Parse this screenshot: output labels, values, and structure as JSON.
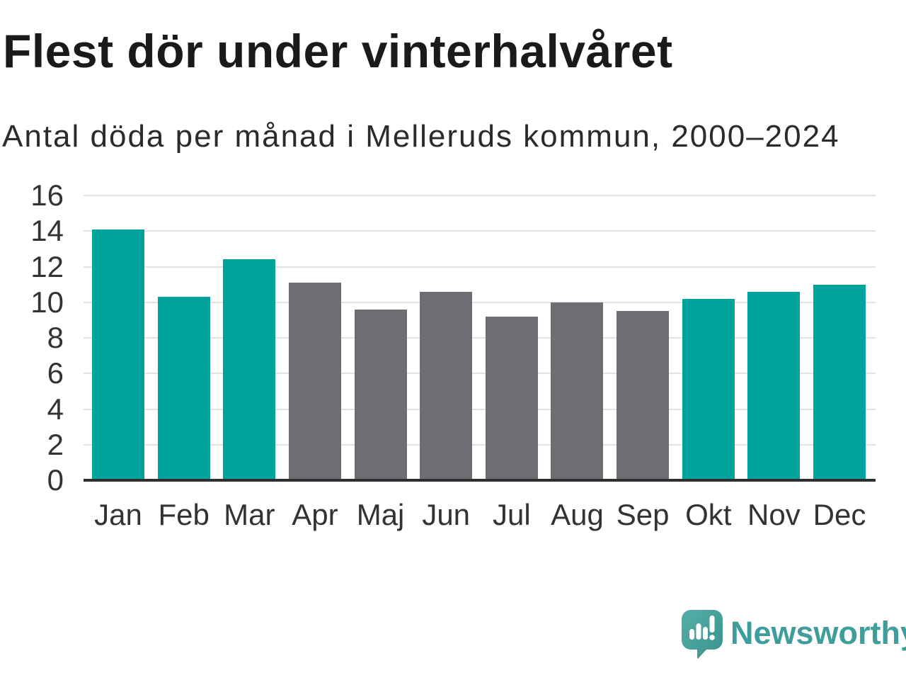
{
  "header": {
    "title": "Flest dör under vinterhalvåret",
    "subtitle": "Antal döda per månad i Melleruds kommun, 2000–2024"
  },
  "chart_data": {
    "type": "bar",
    "title": "Flest dör under vinterhalvåret",
    "subtitle": "Antal döda per månad i Melleruds kommun, 2000–2024",
    "categories": [
      "Jan",
      "Feb",
      "Mar",
      "Apr",
      "Maj",
      "Jun",
      "Jul",
      "Aug",
      "Sep",
      "Okt",
      "Nov",
      "Dec"
    ],
    "values": [
      14.1,
      10.3,
      12.4,
      11.1,
      9.6,
      10.6,
      9.2,
      10.0,
      9.5,
      10.2,
      10.6,
      11.0
    ],
    "bar_colors": [
      "#00a39b",
      "#00a39b",
      "#00a39b",
      "#6e6d73",
      "#6e6d73",
      "#6e6d73",
      "#6e6d73",
      "#6e6d73",
      "#6e6d73",
      "#00a39b",
      "#00a39b",
      "#00a39b"
    ],
    "highlight_color": "#00a39b",
    "muted_color": "#6e6d73",
    "xlabel": "",
    "ylabel": "",
    "ylim": [
      0,
      16
    ],
    "yticks": [
      0,
      2,
      4,
      6,
      8,
      10,
      12,
      14,
      16
    ],
    "grid": true,
    "legend": "none",
    "gridline_color": "#e3e3e3",
    "axis_color": "#2f2f2f"
  },
  "footer": {
    "brand": "Newsworthy",
    "brand_color": "#3f9e9b",
    "logo_icon": "newsworthy-speech-bubble-bar-chart-icon"
  }
}
